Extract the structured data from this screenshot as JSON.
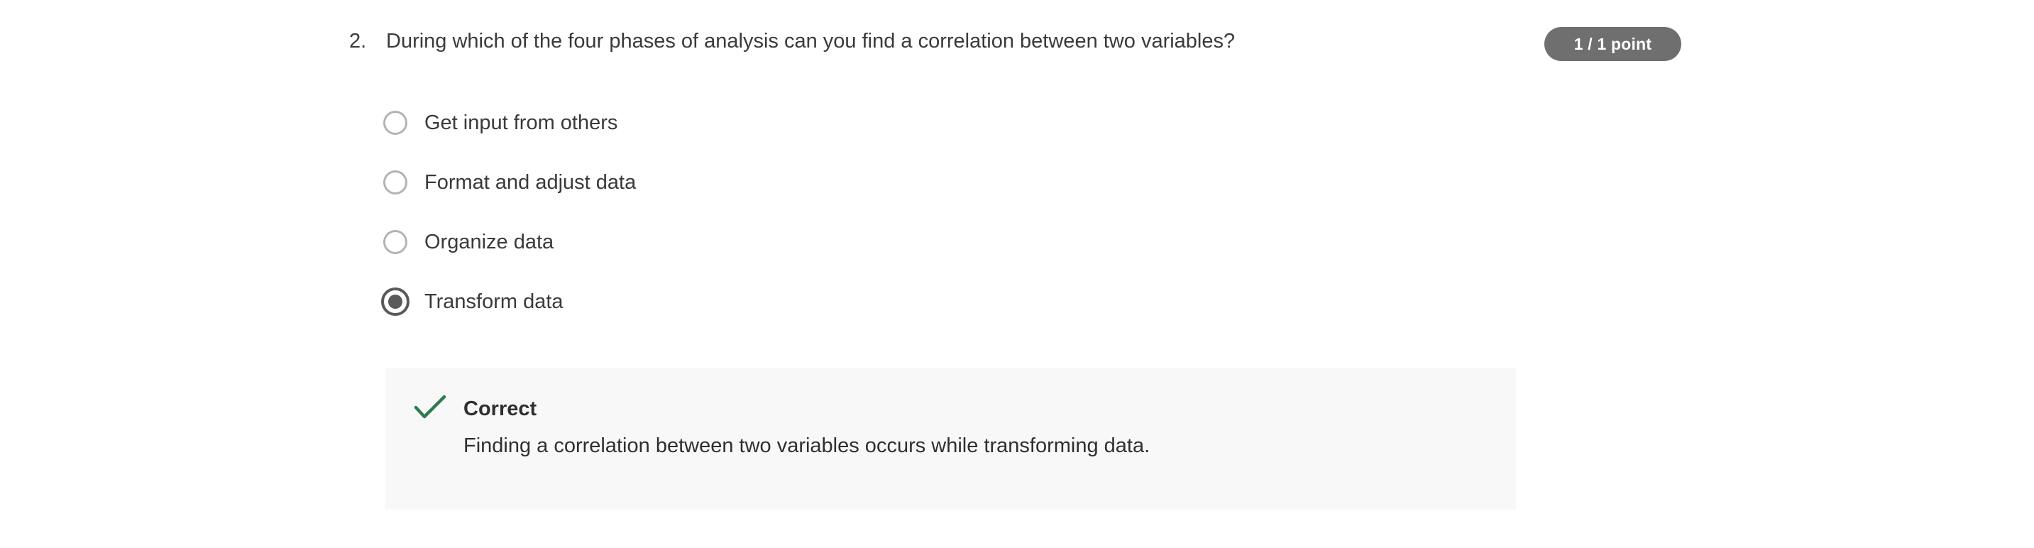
{
  "question": {
    "number": "2.",
    "text": "During which of the four phases of analysis can you find a correlation between two variables?",
    "points": "1 / 1 point"
  },
  "options": [
    {
      "label": "Get input from others",
      "selected": false
    },
    {
      "label": "Format and adjust data",
      "selected": false
    },
    {
      "label": "Organize data",
      "selected": false
    },
    {
      "label": "Transform data",
      "selected": true
    }
  ],
  "feedback": {
    "status": "Correct",
    "message": "Finding a correlation between two variables occurs while transforming data.",
    "icon": "check-icon",
    "icon_color": "#2e7d4f"
  },
  "colors": {
    "badge_bg": "#6f6f6f",
    "feedback_bg": "#f7f8f7",
    "radio_selected": "#5a5a5a",
    "radio_unselected": "#b3b3b3"
  }
}
